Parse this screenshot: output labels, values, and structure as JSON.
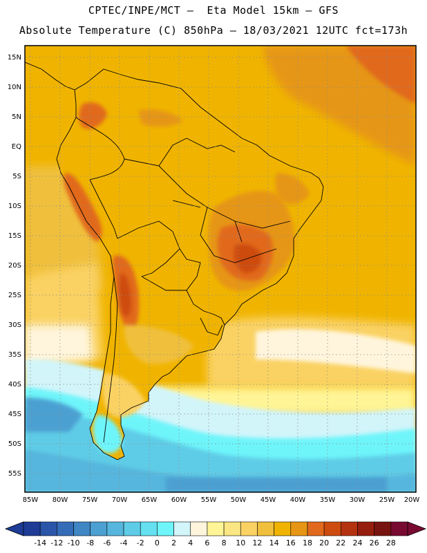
{
  "header": {
    "line1": "CPTEC/INPE/MCT –  Eta Model 15km – GFS",
    "line2": "Absolute Temperature (C) 850hPa – 18/03/2021 12UTC fct=173h"
  },
  "map": {
    "lat_labels": [
      "15N",
      "10N",
      "5N",
      "EQ",
      "5S",
      "10S",
      "15S",
      "20S",
      "25S",
      "30S",
      "35S",
      "40S",
      "45S",
      "50S",
      "55S"
    ],
    "lon_labels": [
      "85W",
      "80W",
      "75W",
      "70W",
      "65W",
      "60W",
      "55W",
      "50W",
      "45W",
      "40W",
      "35W",
      "30W",
      "25W",
      "20W"
    ],
    "grid_lines": "dotted",
    "ocean_base_color": "#f0b400"
  },
  "colorbar": {
    "tick_labels": [
      "-14",
      "-12",
      "-10",
      "-8",
      "-6",
      "-4",
      "-2",
      "0",
      "2",
      "4",
      "6",
      "8",
      "10",
      "12",
      "14",
      "16",
      "18",
      "20",
      "22",
      "24",
      "26",
      "28"
    ],
    "colors": [
      "#1e3c96",
      "#2a55a8",
      "#356cb8",
      "#3f86c5",
      "#4ca0d2",
      "#56b6dd",
      "#5ecce7",
      "#64e0f0",
      "#6ef5fa",
      "#d2f5fa",
      "#fff5dc",
      "#fff596",
      "#fae682",
      "#fad264",
      "#f0c03c",
      "#f0b400",
      "#e69614",
      "#e1691e",
      "#cd4b0f",
      "#b4320f",
      "#961e0f",
      "#78140f",
      "#780a32"
    ]
  }
}
